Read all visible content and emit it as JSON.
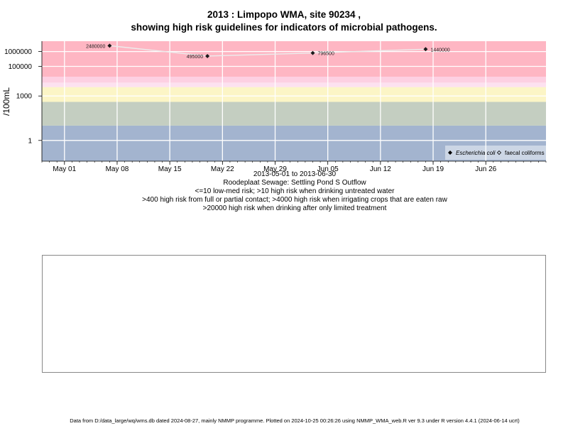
{
  "title_line1": "2013 : Limpopo WMA, site 90234 ,",
  "title_line2": "showing high risk guidelines for indicators of microbial pathogens.",
  "caption": {
    "date_range": "2013-05-01 to 2013-06-30",
    "site_name": "Roodeplaat Sewage: Settling Pond S Outflow",
    "risk_line1": "<=10 low-med risk; >10 high risk when drinking untreated water",
    "risk_line2": ">400 high risk from full or partial contact; >4000 high risk when irrigating crops that are eaten raw",
    "risk_line3": ">20000 high risk when drinking after only limited treatment"
  },
  "footer": "Data from D:/data_large/wq/wms.db dated 2024-08-27, mainly NMMP programme. Plotted on 2024-10-25 00:26:26 using NMMP_WMA_web.R ver 9.3 under R version 4.4.1 (2024-06-14 ucrt)",
  "chart_data": {
    "type": "line",
    "ylabel": "/100mL",
    "y_scale": "log",
    "xlim": [
      "2013-04-28",
      "2013-07-04"
    ],
    "ylim_log10": [
      -1.4,
      6.7
    ],
    "x_ticks": [
      {
        "date": "2013-05-01",
        "label": "May 01"
      },
      {
        "date": "2013-05-08",
        "label": "May 08"
      },
      {
        "date": "2013-05-15",
        "label": "May 15"
      },
      {
        "date": "2013-05-22",
        "label": "May 22"
      },
      {
        "date": "2013-05-29",
        "label": "May 29"
      },
      {
        "date": "2013-06-05",
        "label": "Jun 05"
      },
      {
        "date": "2013-06-12",
        "label": "Jun 12"
      },
      {
        "date": "2013-06-19",
        "label": "Jun 19"
      },
      {
        "date": "2013-06-26",
        "label": "Jun 26"
      }
    ],
    "y_ticks": [
      {
        "value": 1,
        "label": "1"
      },
      {
        "value": 1000,
        "label": "1000"
      },
      {
        "value": 100000,
        "label": "100000"
      },
      {
        "value": 1000000,
        "label": "1000000"
      }
    ],
    "risk_bands": [
      {
        "from": 0.04,
        "to": 10,
        "color": "#a3b4cf"
      },
      {
        "from": 10,
        "to": 400,
        "color": "#c4cec1"
      },
      {
        "from": 400,
        "to": 4000,
        "color": "#fcf5c6"
      },
      {
        "from": 4000,
        "to": 8000,
        "color": "#fde1f0"
      },
      {
        "from": 8000,
        "to": 20000,
        "color": "#fdd0e2"
      },
      {
        "from": 20000,
        "to": 5000000,
        "color": "#feb6c3"
      }
    ],
    "series": [
      {
        "name": "Escherichia coli",
        "marker": "filled-diamond",
        "points": [
          {
            "date": "2013-05-07",
            "value": 2480000,
            "label": "2480000"
          },
          {
            "date": "2013-05-20",
            "value": 495000,
            "label": "495000"
          },
          {
            "date": "2013-06-03",
            "value": 796500,
            "label": "796500"
          },
          {
            "date": "2013-06-18",
            "value": 1440000,
            "label": "1440000"
          }
        ]
      },
      {
        "name": "faecal coliforms",
        "marker": "open-diamond",
        "points": []
      }
    ],
    "legend_position": "bottom-right",
    "grid": true
  }
}
